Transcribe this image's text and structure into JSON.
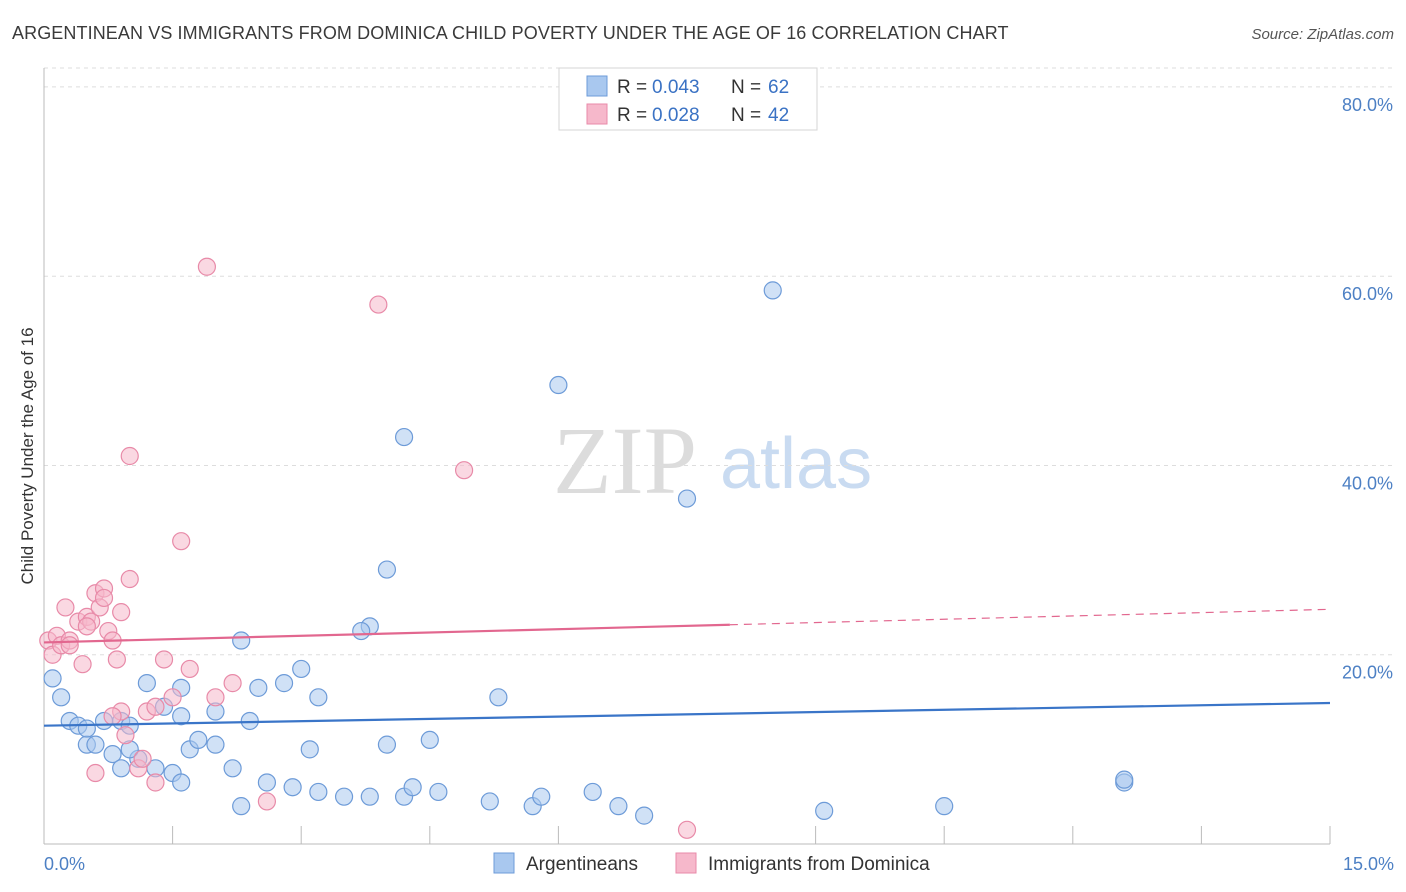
{
  "chart_data": {
    "type": "scatter",
    "title": "ARGENTINEAN VS IMMIGRANTS FROM DOMINICA CHILD POVERTY UNDER THE AGE OF 16 CORRELATION CHART",
    "source": "Source: ZipAtlas.com",
    "ylabel": "Child Poverty Under the Age of 16",
    "xlim": [
      0,
      15
    ],
    "ylim": [
      0,
      82
    ],
    "y_ticks": [
      {
        "value": 20,
        "label": "20.0%"
      },
      {
        "value": 40,
        "label": "40.0%"
      },
      {
        "value": 60,
        "label": "60.0%"
      },
      {
        "value": 80,
        "label": "80.0%"
      }
    ],
    "x_tick_labels": {
      "min": "0.0%",
      "max": "15.0%"
    },
    "x_minor_ticks": [
      0,
      1.5,
      3,
      4.5,
      6,
      9,
      10.5,
      12,
      13.5,
      15
    ],
    "grid": true,
    "watermark": {
      "zip": "ZIP",
      "atlas": "atlas"
    },
    "legend": {
      "position": "top-center",
      "r_label": "R =",
      "n_label": "N =",
      "rows": [
        {
          "r": "0.043",
          "n": "62"
        },
        {
          "r": "0.028",
          "n": "42"
        }
      ]
    },
    "colors": {
      "blue_fill": "#a9c8ef",
      "blue_stroke": "#6d9bd8",
      "blue_line": "#3a75c8",
      "pink_fill": "#f6b8cb",
      "pink_stroke": "#e88aa8",
      "pink_line": "#e2678f",
      "grid": "#dddddd",
      "axis": "#bbbbbb"
    },
    "series": [
      {
        "name": "Argentineans",
        "trend": {
          "x0": 0,
          "y0": 12.5,
          "x1": 15,
          "y1": 14.9,
          "solid_to": 15
        },
        "points": [
          [
            0.1,
            17.5
          ],
          [
            0.2,
            15.5
          ],
          [
            0.3,
            13.0
          ],
          [
            0.4,
            12.5
          ],
          [
            0.5,
            10.5
          ],
          [
            0.5,
            12.2
          ],
          [
            0.6,
            10.5
          ],
          [
            0.7,
            13.0
          ],
          [
            0.8,
            9.5
          ],
          [
            0.9,
            8.0
          ],
          [
            0.9,
            13.0
          ],
          [
            1.0,
            12.5
          ],
          [
            1.1,
            9.0
          ],
          [
            1.2,
            17.0
          ],
          [
            1.3,
            8.0
          ],
          [
            1.4,
            14.5
          ],
          [
            1.6,
            13.5
          ],
          [
            1.5,
            7.5
          ],
          [
            1.7,
            10.0
          ],
          [
            1.8,
            11.0
          ],
          [
            2.0,
            10.5
          ],
          [
            2.0,
            14.0
          ],
          [
            2.2,
            8.0
          ],
          [
            2.3,
            4.0
          ],
          [
            2.4,
            13.0
          ],
          [
            2.6,
            6.5
          ],
          [
            2.9,
            6.0
          ],
          [
            3.1,
            10.0
          ],
          [
            3.2,
            5.5
          ],
          [
            3.5,
            5.0
          ],
          [
            3.8,
            5.0
          ],
          [
            4.2,
            5.0
          ],
          [
            4.3,
            6.0
          ],
          [
            4.6,
            5.5
          ],
          [
            4.0,
            10.5
          ],
          [
            4.5,
            11.0
          ],
          [
            5.2,
            4.5
          ],
          [
            5.7,
            4.0
          ],
          [
            5.8,
            5.0
          ],
          [
            6.4,
            5.5
          ],
          [
            6.7,
            4.0
          ],
          [
            7.0,
            3.0
          ],
          [
            9.1,
            3.5
          ],
          [
            10.5,
            4.0
          ],
          [
            12.6,
            6.5
          ],
          [
            12.6,
            6.8
          ],
          [
            1.6,
            16.5
          ],
          [
            2.5,
            16.5
          ],
          [
            2.8,
            17.0
          ],
          [
            3.0,
            18.5
          ],
          [
            3.2,
            15.5
          ],
          [
            3.8,
            23.0
          ],
          [
            4.0,
            29.0
          ],
          [
            3.7,
            22.5
          ],
          [
            4.2,
            43.0
          ],
          [
            5.3,
            15.5
          ],
          [
            6.0,
            48.5
          ],
          [
            7.5,
            36.5
          ],
          [
            8.5,
            58.5
          ],
          [
            1.0,
            10.0
          ],
          [
            2.3,
            21.5
          ],
          [
            1.6,
            6.5
          ]
        ]
      },
      {
        "name": "Immigrants from Dominica",
        "trend": {
          "x0": 0,
          "y0": 21.3,
          "x1": 15,
          "y1": 24.8,
          "solid_to": 8.0
        },
        "points": [
          [
            0.05,
            21.5
          ],
          [
            0.1,
            20.0
          ],
          [
            0.15,
            22.0
          ],
          [
            0.2,
            21.0
          ],
          [
            0.25,
            25.0
          ],
          [
            0.3,
            21.5
          ],
          [
            0.4,
            23.5
          ],
          [
            0.45,
            19.0
          ],
          [
            0.5,
            24.0
          ],
          [
            0.55,
            23.5
          ],
          [
            0.6,
            26.5
          ],
          [
            0.65,
            25.0
          ],
          [
            0.7,
            27.0
          ],
          [
            0.75,
            22.5
          ],
          [
            0.8,
            21.5
          ],
          [
            0.85,
            19.5
          ],
          [
            0.9,
            24.5
          ],
          [
            1.0,
            28.0
          ],
          [
            1.1,
            8.0
          ],
          [
            1.2,
            14.0
          ],
          [
            1.3,
            6.5
          ],
          [
            1.4,
            19.5
          ],
          [
            1.5,
            15.5
          ],
          [
            1.6,
            32.0
          ],
          [
            1.7,
            18.5
          ],
          [
            1.9,
            61.0
          ],
          [
            2.0,
            15.5
          ],
          [
            2.2,
            17.0
          ],
          [
            2.6,
            4.5
          ],
          [
            3.9,
            57.0
          ],
          [
            4.9,
            39.5
          ],
          [
            7.5,
            1.5
          ],
          [
            1.0,
            41.0
          ],
          [
            0.9,
            14.0
          ],
          [
            0.6,
            7.5
          ],
          [
            0.5,
            23.0
          ],
          [
            0.3,
            21.0
          ],
          [
            0.7,
            26.0
          ],
          [
            1.3,
            14.5
          ],
          [
            0.8,
            13.5
          ],
          [
            1.15,
            9.0
          ],
          [
            0.95,
            11.5
          ]
        ]
      }
    ]
  }
}
